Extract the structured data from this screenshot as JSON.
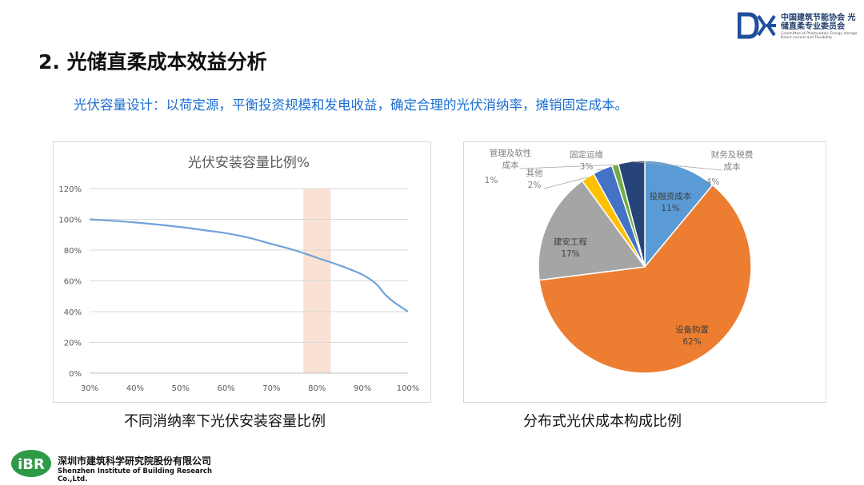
{
  "header": {
    "org_cn": "中国建筑节能协会 光储直柔专业委员会",
    "org_en": "Committee of Photovoltaic Energy storage Direct current and Flexibility"
  },
  "slide": {
    "title": "2. 光储直柔成本效益分析",
    "subtitle": "光伏容量设计：以荷定源，平衡投资规模和发电收益，确定合理的光伏消纳率，摊销固定成本。"
  },
  "captions": {
    "left": "不同消纳率下光伏安装容量比例",
    "right": "分布式光伏成本构成比例"
  },
  "footer": {
    "logo_text": "iBR",
    "org_cn": "深圳市建筑科学研究院股份有限公司",
    "org_en": "Shenzhen Institute of Building Research Co.,Ltd."
  },
  "chart_data": [
    {
      "type": "line",
      "title": "光伏安装容量比例%",
      "x_tick_labels": [
        "30%",
        "40%",
        "50%",
        "60%",
        "70%",
        "80%",
        "90%",
        "100%"
      ],
      "y_tick_labels": [
        "0%",
        "20%",
        "40%",
        "60%",
        "80%",
        "100%",
        "120%"
      ],
      "xlim": [
        30,
        100
      ],
      "ylim": [
        0,
        120
      ],
      "grid": "horizontal",
      "line_color": "#6fa3d9",
      "highlight_color": "#f8dccb",
      "highlight_range": [
        77,
        83
      ],
      "series": [
        {
          "x": [
            30,
            40,
            50,
            55,
            60,
            65,
            70,
            75,
            80,
            85,
            90,
            93,
            95,
            97,
            100
          ],
          "y": [
            100,
            98,
            95,
            93,
            91,
            88,
            84,
            80,
            75,
            70,
            64,
            58,
            51,
            46,
            40
          ]
        }
      ]
    },
    {
      "type": "pie",
      "slices": [
        {
          "label": "投融资成本",
          "pct_label": "11%",
          "value": 11,
          "color": "#5b9bd5"
        },
        {
          "label": "设备购置",
          "pct_label": "62%",
          "value": 62,
          "color": "#ed7d31"
        },
        {
          "label": "建安工程",
          "pct_label": "17%",
          "value": 17,
          "color": "#a5a5a5"
        },
        {
          "label": "其他",
          "pct_label": "2%",
          "value": 2,
          "color": "#ffc000"
        },
        {
          "label": "固定运维",
          "pct_label": "3%",
          "value": 3,
          "color": "#4472c4"
        },
        {
          "label": "管理及软性成本",
          "pct_label": "1%",
          "value": 1,
          "color": "#70ad47"
        },
        {
          "label": "财务及税费成本",
          "pct_label": "4%",
          "value": 4,
          "color": "#264478"
        }
      ]
    }
  ]
}
